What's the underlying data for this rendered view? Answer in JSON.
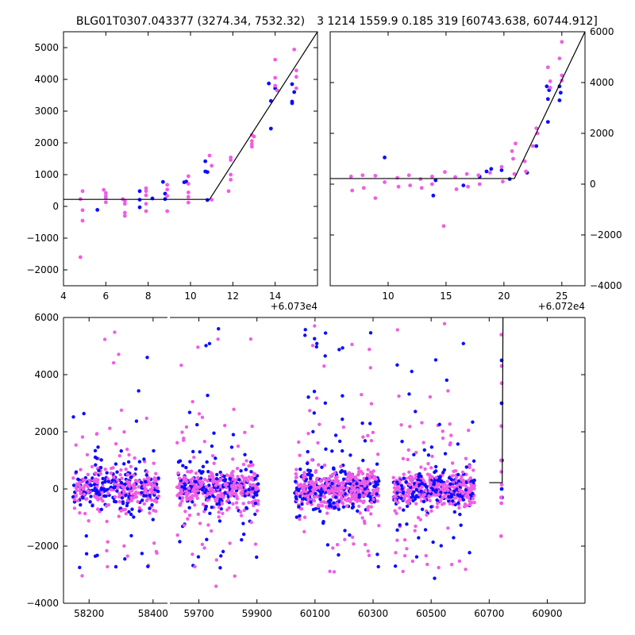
{
  "figure": {
    "title_left": "BLG01T0307.043377 (3274.34, 7532.32)",
    "title_right": "3 1214 1559.9 0.185 319 [60743.638, 60744.912]"
  },
  "colors": {
    "series_a": "#0d0dff",
    "series_b": "#ee5ee4",
    "model": "#000000",
    "axes": "#000000",
    "background": "#ffffff"
  },
  "chart_data": [
    {
      "type": "scatter",
      "name": "zoom-left",
      "offset_text": "+6.073e4",
      "xlim": [
        4.0,
        16.0
      ],
      "ylim": [
        -2500,
        5500
      ],
      "xticks": [
        4,
        6,
        8,
        10,
        12,
        14
      ],
      "yticks": [
        -2000,
        -1000,
        0,
        1000,
        2000,
        3000,
        4000,
        5000
      ],
      "model": [
        [
          4.0,
          220
        ],
        [
          10.9,
          220
        ],
        [
          16.0,
          5500
        ]
      ],
      "series": [
        {
          "color": "series_a",
          "points": [
            [
              5.6,
              -110
            ],
            [
              7.6,
              480
            ],
            [
              7.6,
              210
            ],
            [
              7.6,
              -30
            ],
            [
              8.2,
              250
            ],
            [
              8.7,
              770
            ],
            [
              8.8,
              400
            ],
            [
              8.8,
              230
            ],
            [
              9.7,
              760
            ],
            [
              9.8,
              780
            ],
            [
              10.7,
              1420
            ],
            [
              10.7,
              1100
            ],
            [
              10.8,
              1080
            ],
            [
              10.8,
              200
            ],
            [
              13.7,
              3870
            ],
            [
              13.8,
              3320
            ],
            [
              13.8,
              2450
            ],
            [
              14.0,
              3720
            ],
            [
              14.8,
              3850
            ],
            [
              14.8,
              3300
            ],
            [
              14.8,
              3250
            ],
            [
              14.9,
              3600
            ]
          ]
        },
        {
          "color": "series_b",
          "points": [
            [
              4.8,
              -1600
            ],
            [
              4.9,
              -450
            ],
            [
              4.9,
              -120
            ],
            [
              4.9,
              480
            ],
            [
              4.8,
              230
            ],
            [
              5.9,
              520
            ],
            [
              6.0,
              420
            ],
            [
              6.0,
              330
            ],
            [
              6.0,
              270
            ],
            [
              6.0,
              130
            ],
            [
              6.8,
              230
            ],
            [
              6.9,
              170
            ],
            [
              6.9,
              80
            ],
            [
              6.9,
              -300
            ],
            [
              6.9,
              -200
            ],
            [
              7.9,
              570
            ],
            [
              7.9,
              480
            ],
            [
              7.9,
              350
            ],
            [
              7.9,
              80
            ],
            [
              7.9,
              -150
            ],
            [
              8.9,
              680
            ],
            [
              8.9,
              530
            ],
            [
              8.9,
              330
            ],
            [
              8.9,
              -150
            ],
            [
              9.9,
              950
            ],
            [
              9.9,
              710
            ],
            [
              9.9,
              440
            ],
            [
              9.9,
              300
            ],
            [
              9.9,
              120
            ],
            [
              10.9,
              1600
            ],
            [
              11.0,
              1280
            ],
            [
              11.0,
              210
            ],
            [
              11.9,
              1540
            ],
            [
              11.9,
              1460
            ],
            [
              11.9,
              1000
            ],
            [
              11.9,
              840
            ],
            [
              11.8,
              480
            ],
            [
              12.9,
              2250
            ],
            [
              12.9,
              2060
            ],
            [
              12.9,
              1960
            ],
            [
              12.9,
              1880
            ],
            [
              13.0,
              2200
            ],
            [
              14.0,
              4620
            ],
            [
              14.0,
              4050
            ],
            [
              14.0,
              3800
            ],
            [
              14.1,
              3650
            ],
            [
              14.9,
              4940
            ],
            [
              15.0,
              4280
            ],
            [
              15.0,
              4080
            ],
            [
              15.0,
              3720
            ]
          ]
        }
      ]
    },
    {
      "type": "scatter",
      "name": "zoom-right",
      "offset_text": "+6.072e4",
      "xlim": [
        5.0,
        27.0
      ],
      "ylim": [
        -4000,
        6000
      ],
      "xticks": [
        10,
        15,
        20,
        25
      ],
      "yticks": [
        -4000,
        -2000,
        0,
        2000,
        4000,
        6000
      ],
      "model": [
        [
          5.0,
          220
        ],
        [
          20.9,
          220
        ],
        [
          27.0,
          6000
        ]
      ],
      "series": [
        {
          "color": "series_a",
          "points": [
            [
              9.7,
              1050
            ],
            [
              13.9,
              -450
            ],
            [
              14.1,
              150
            ],
            [
              16.5,
              -50
            ],
            [
              17.9,
              300
            ],
            [
              18.5,
              500
            ],
            [
              18.9,
              600
            ],
            [
              19.8,
              550
            ],
            [
              20.5,
              200
            ],
            [
              22.0,
              450
            ],
            [
              22.8,
              1500
            ],
            [
              23.7,
              3850
            ],
            [
              23.8,
              3350
            ],
            [
              23.8,
              2450
            ],
            [
              23.9,
              3700
            ],
            [
              24.8,
              3850
            ],
            [
              24.8,
              3300
            ],
            [
              24.9,
              3600
            ]
          ]
        },
        {
          "color": "series_b",
          "points": [
            [
              6.8,
              300
            ],
            [
              6.9,
              -250
            ],
            [
              7.8,
              350
            ],
            [
              7.9,
              -150
            ],
            [
              8.9,
              330
            ],
            [
              8.9,
              -550
            ],
            [
              9.7,
              80
            ],
            [
              10.8,
              250
            ],
            [
              10.9,
              -100
            ],
            [
              11.8,
              350
            ],
            [
              11.9,
              -50
            ],
            [
              12.8,
              200
            ],
            [
              12.9,
              -150
            ],
            [
              13.8,
              300
            ],
            [
              13.8,
              0
            ],
            [
              14.8,
              -1650
            ],
            [
              14.9,
              480
            ],
            [
              15.8,
              280
            ],
            [
              15.9,
              -200
            ],
            [
              16.8,
              400
            ],
            [
              16.9,
              -100
            ],
            [
              17.8,
              350
            ],
            [
              17.9,
              0
            ],
            [
              18.8,
              450
            ],
            [
              19.8,
              680
            ],
            [
              19.9,
              100
            ],
            [
              20.7,
              1300
            ],
            [
              20.8,
              1000
            ],
            [
              20.9,
              400
            ],
            [
              21.0,
              1600
            ],
            [
              21.8,
              900
            ],
            [
              21.9,
              500
            ],
            [
              22.5,
              1500
            ],
            [
              22.8,
              2200
            ],
            [
              22.9,
              2000
            ],
            [
              23.8,
              4600
            ],
            [
              24.0,
              4050
            ],
            [
              24.0,
              3800
            ],
            [
              24.8,
              4950
            ],
            [
              25.0,
              4280
            ],
            [
              25.0,
              4080
            ],
            [
              25.0,
              5600
            ]
          ]
        }
      ]
    },
    {
      "type": "scatter",
      "name": "full-lightcurve",
      "xticks": [
        58200,
        58400,
        59700,
        59900,
        60100,
        60300,
        60500,
        60700,
        60900
      ],
      "yticks": [
        -4000,
        -2000,
        0,
        2000,
        4000,
        6000
      ],
      "ylim": [
        -4000,
        6000
      ],
      "segments": [
        {
          "xlim": [
            58120,
            58445
          ]
        },
        {
          "xlim": [
            59600,
            61030
          ]
        }
      ],
      "seasons": [
        {
          "range": [
            58150,
            58420
          ],
          "density": 0.55
        },
        {
          "range": [
            59625,
            59905
          ],
          "density": 0.6
        },
        {
          "range": [
            60030,
            60320
          ],
          "density": 0.7
        },
        {
          "range": [
            60370,
            60650
          ],
          "density": 0.62
        }
      ],
      "model": [
        [
          60700,
          220
        ],
        [
          60744.9,
          220
        ],
        [
          60747.5,
          6000
        ]
      ],
      "event_points_a": [
        [
          60743,
          4500
        ],
        [
          60743,
          3000
        ],
        [
          60744,
          1000
        ],
        [
          60743,
          0
        ],
        [
          60744,
          -300
        ]
      ],
      "event_points_b": [
        [
          60742,
          5400
        ],
        [
          60743,
          4300
        ],
        [
          60743,
          3700
        ],
        [
          60742,
          2200
        ],
        [
          60741,
          1000
        ],
        [
          60742,
          600
        ],
        [
          60743,
          150
        ],
        [
          60741,
          -1650
        ],
        [
          60741,
          -300
        ],
        [
          60742,
          -500
        ]
      ]
    }
  ]
}
